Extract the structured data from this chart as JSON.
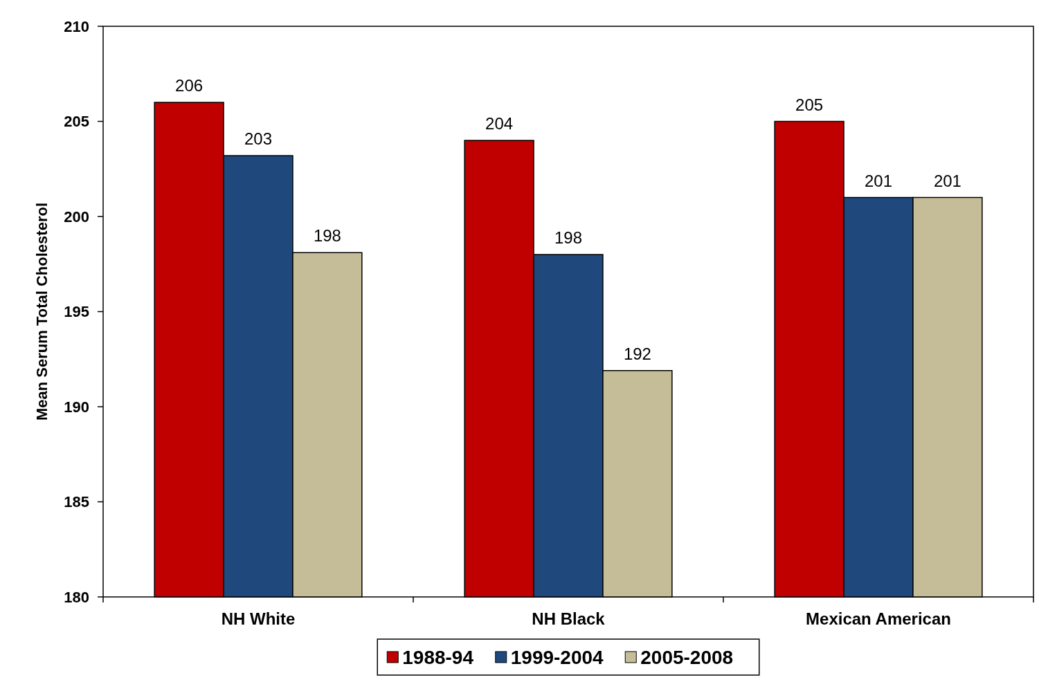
{
  "chart_data": {
    "type": "bar",
    "ylabel": "Mean Serum Total Cholesterol",
    "categories": [
      "NH White",
      "NH Black",
      "Mexican American"
    ],
    "series": [
      {
        "name": "1988-94",
        "color": "#c00000",
        "values": [
          206.0,
          204.0,
          205.0
        ],
        "value_labels": [
          "206",
          "204",
          "205"
        ]
      },
      {
        "name": "1999-2004",
        "color": "#1f497d",
        "values": [
          203.2,
          198.0,
          201.0
        ],
        "value_labels": [
          "203",
          "198",
          "201"
        ]
      },
      {
        "name": "2005-2008",
        "color": "#c4bd97",
        "values": [
          198.1,
          191.9,
          201.0
        ],
        "value_labels": [
          "198",
          "192",
          "201"
        ]
      }
    ],
    "ylim": [
      180,
      210
    ],
    "yticks": [
      180,
      185,
      190,
      195,
      200,
      205,
      210
    ],
    "grid": false,
    "legend": "bottom"
  }
}
